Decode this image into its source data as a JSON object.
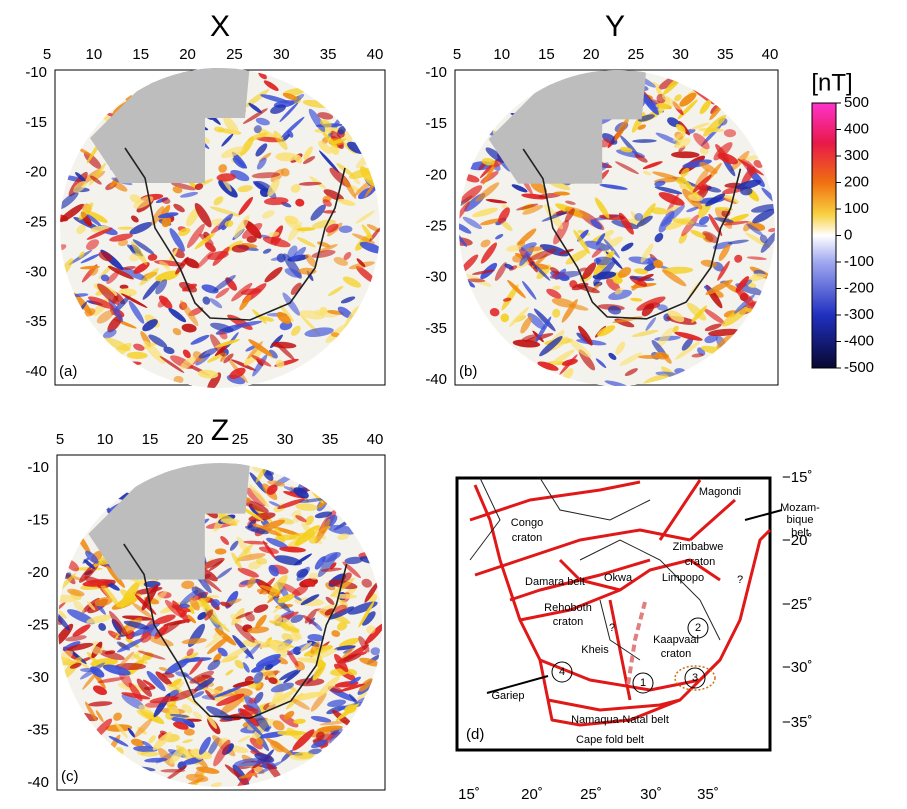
{
  "panels": [
    {
      "title": "X",
      "label": "(a)",
      "xticks": [
        5,
        10,
        15,
        20,
        25,
        30,
        35,
        40
      ],
      "yticks": [
        -10,
        -15,
        -20,
        -25,
        -30,
        -35,
        -40
      ]
    },
    {
      "title": "Y",
      "label": "(b)",
      "xticks": [
        5,
        10,
        15,
        20,
        25,
        30,
        35,
        40
      ],
      "yticks": [
        -10,
        -15,
        -20,
        -25,
        -30,
        -35,
        -40
      ]
    },
    {
      "title": "Z",
      "label": "(c)",
      "xticks": [
        5,
        10,
        15,
        20,
        25,
        30,
        35,
        40
      ],
      "yticks": [
        -10,
        -15,
        -20,
        -25,
        -30,
        -35,
        -40
      ]
    }
  ],
  "colorbar": {
    "label": "[nT]",
    "ticks": [
      500,
      400,
      300,
      200,
      100,
      0,
      -100,
      -200,
      -300,
      -400,
      -500
    ]
  },
  "map": {
    "label": "(d)",
    "xticks": [
      "15˚",
      "20˚",
      "25˚",
      "30˚",
      "35˚"
    ],
    "yticks": [
      "−15˚",
      "−20˚",
      "−25˚",
      "−30˚",
      "−35˚"
    ],
    "labels": [
      "Congo",
      "craton",
      "Damara belt",
      "Magondi",
      "Zimbabwe",
      "craton",
      "Mozam-",
      "bique",
      "belt",
      "Okwa",
      "Limpopo",
      "?",
      "Rehoboth",
      "craton",
      "Kheis",
      "?",
      "Kaapvaal",
      "craton",
      "Gariep",
      "Namaqua-Natal belt",
      "Cape fold belt",
      "1",
      "2",
      "3",
      "4"
    ]
  }
}
